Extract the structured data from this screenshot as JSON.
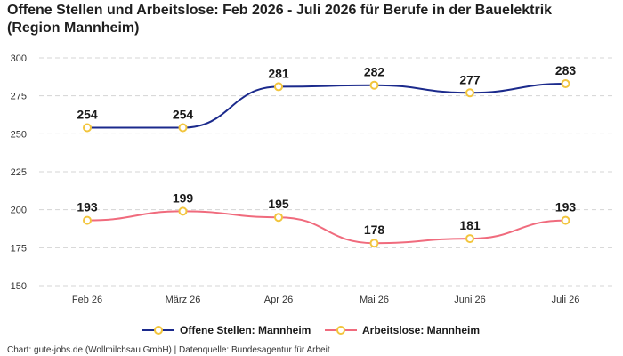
{
  "title_line1": "Offene Stellen und Arbeitslose: Feb 2026 - Juli 2026 für Berufe in der Bauelektrik",
  "title_line2": "(Region Mannheim)",
  "footer": "Chart: gute-jobs.de (Wollmilchsau GmbH) | Datenquelle: Bundesagentur für Arbeit",
  "colors": {
    "series1": "#1b2a8c",
    "series2": "#f06b7d",
    "marker": "#f2c53d",
    "grid": "#d4d4d4"
  },
  "chart_data": {
    "type": "line",
    "categories": [
      "Feb 26",
      "März 26",
      "Apr 26",
      "Mai 26",
      "Juni 26",
      "Juli 26"
    ],
    "ylim": [
      150,
      300
    ],
    "yticks": [
      150,
      175,
      200,
      225,
      250,
      275,
      300
    ],
    "grid": true,
    "legend_position": "bottom-center",
    "series": [
      {
        "name": "Offene Stellen: Mannheim",
        "values": [
          254,
          254,
          281,
          282,
          277,
          283
        ]
      },
      {
        "name": "Arbeitslose: Mannheim",
        "values": [
          193,
          199,
          195,
          178,
          181,
          193
        ]
      }
    ]
  }
}
